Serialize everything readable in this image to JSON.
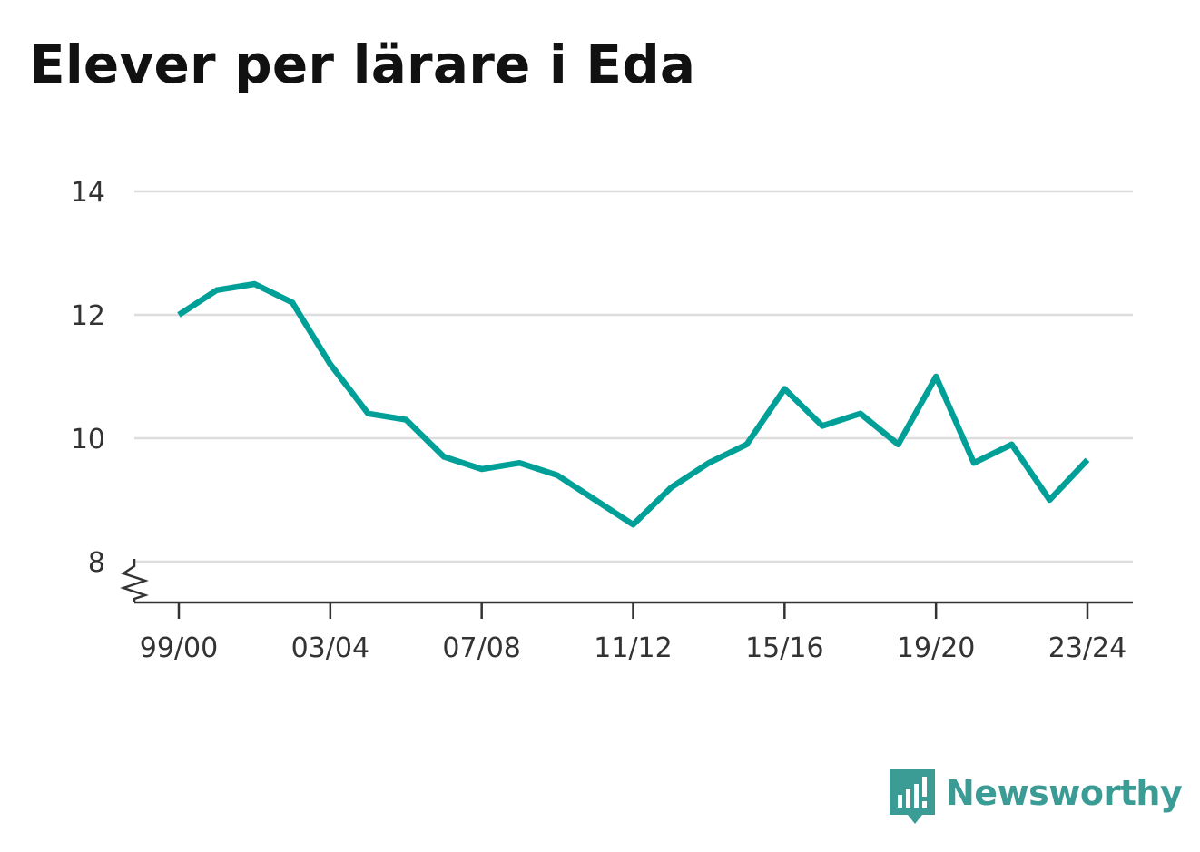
{
  "title": "Elever per lärare i Eda",
  "brand": {
    "name": "Newsworthy",
    "logo_icon": "bar-chart-speech-bubble-icon",
    "color": "#3a9c95"
  },
  "chart_data": {
    "type": "line",
    "title": "Elever per lärare i Eda",
    "xlabel": "",
    "ylabel": "",
    "x": [
      "99/00",
      "00/01",
      "01/02",
      "02/03",
      "03/04",
      "04/05",
      "05/06",
      "06/07",
      "07/08",
      "08/09",
      "09/10",
      "10/11",
      "11/12",
      "12/13",
      "13/14",
      "14/15",
      "15/16",
      "16/17",
      "17/18",
      "18/19",
      "19/20",
      "20/21",
      "21/22",
      "22/23",
      "23/24"
    ],
    "x_tick_labels": [
      "99/00",
      "03/04",
      "07/08",
      "11/12",
      "15/16",
      "19/20",
      "23/24"
    ],
    "series": [
      {
        "color": "#00a098",
        "values": [
          12.0,
          12.4,
          12.5,
          12.2,
          11.2,
          10.4,
          10.3,
          9.7,
          9.5,
          9.6,
          9.4,
          9.0,
          8.6,
          9.2,
          9.6,
          9.9,
          10.8,
          10.2,
          10.4,
          9.9,
          11.0,
          9.6,
          9.9,
          9.0,
          9.65
        ]
      }
    ],
    "ylim": [
      8,
      14
    ],
    "y_ticks": [
      8,
      10,
      12,
      14
    ],
    "y_axis_break": true,
    "grid": true,
    "colors": {
      "line": "#00a098",
      "grid": "#dddddd",
      "axis": "#333333"
    }
  }
}
